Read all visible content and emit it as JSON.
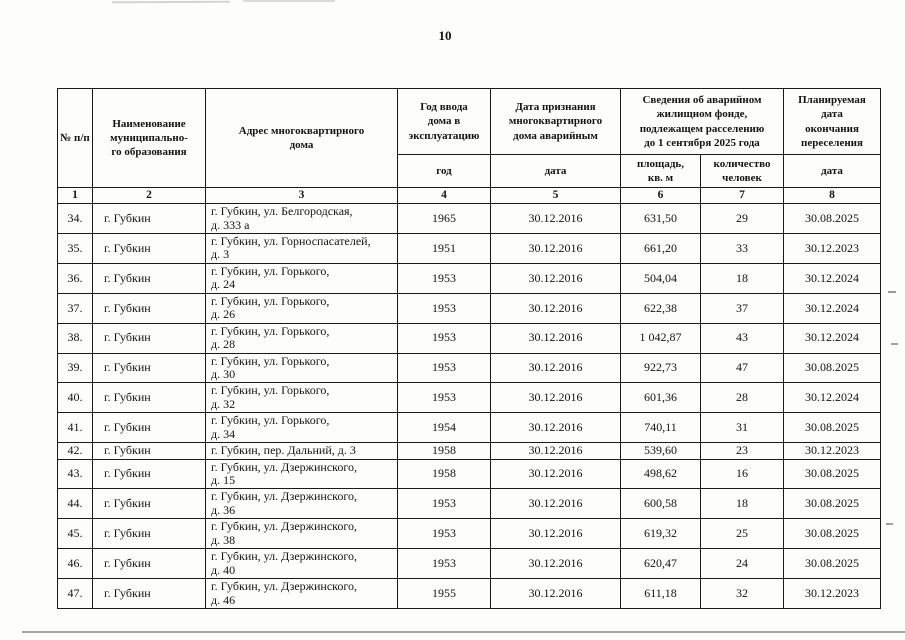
{
  "page": {
    "number": "10"
  },
  "table": {
    "headers": {
      "num": "№ п/п",
      "municipality": "Наименование\nмуниципально-\nго образования",
      "address": "Адрес многоквартирного\nдома",
      "year_group": "Год ввода\nдома в\nэксплуатацию",
      "year_sub": "год",
      "recognition_group": "Дата признания\nмногоквартирного\nдома аварийным",
      "recognition_sub": "дата",
      "fund_group": "Сведения об аварийном\nжилищном фонде,\nподлежащем расселению\nдо 1 сентября 2025 года",
      "area_sub": "площадь,\nкв. м",
      "people_sub": "количество\nчеловек",
      "completion_group": "Планируемая\nдата\nокончания\nпереселения",
      "completion_sub": "дата"
    },
    "column_numbers": [
      "1",
      "2",
      "3",
      "4",
      "5",
      "6",
      "7",
      "8"
    ],
    "rows": [
      {
        "num": "34.",
        "municipality": "г. Губкин",
        "address": "г. Губкин, ул. Белгородская,\nд. 333 а",
        "year": "1965",
        "recognition_date": "30.12.2016",
        "area": "631,50",
        "people": "29",
        "completion_date": "30.08.2025"
      },
      {
        "num": "35.",
        "municipality": "г. Губкин",
        "address": "г. Губкин, ул. Горноспасателей,\nд. 3",
        "year": "1951",
        "recognition_date": "30.12.2016",
        "area": "661,20",
        "people": "33",
        "completion_date": "30.12.2023"
      },
      {
        "num": "36.",
        "municipality": "г. Губкин",
        "address": "г. Губкин, ул. Горького,\nд. 24",
        "year": "1953",
        "recognition_date": "30.12.2016",
        "area": "504,04",
        "people": "18",
        "completion_date": "30.12.2024"
      },
      {
        "num": "37.",
        "municipality": "г. Губкин",
        "address": "г. Губкин, ул. Горького,\nд. 26",
        "year": "1953",
        "recognition_date": "30.12.2016",
        "area": "622,38",
        "people": "37",
        "completion_date": "30.12.2024"
      },
      {
        "num": "38.",
        "municipality": "г. Губкин",
        "address": "г. Губкин, ул. Горького,\nд. 28",
        "year": "1953",
        "recognition_date": "30.12.2016",
        "area": "1 042,87",
        "people": "43",
        "completion_date": "30.12.2024"
      },
      {
        "num": "39.",
        "municipality": "г. Губкин",
        "address": "г. Губкин, ул. Горького,\nд. 30",
        "year": "1953",
        "recognition_date": "30.12.2016",
        "area": "922,73",
        "people": "47",
        "completion_date": "30.08.2025"
      },
      {
        "num": "40.",
        "municipality": "г. Губкин",
        "address": "г. Губкин, ул. Горького,\nд. 32",
        "year": "1953",
        "recognition_date": "30.12.2016",
        "area": "601,36",
        "people": "28",
        "completion_date": "30.12.2024"
      },
      {
        "num": "41.",
        "municipality": "г. Губкин",
        "address": "г. Губкин, ул. Горького,\nд. 34",
        "year": "1954",
        "recognition_date": "30.12.2016",
        "area": "740,11",
        "people": "31",
        "completion_date": "30.08.2025"
      },
      {
        "num": "42.",
        "municipality": "г. Губкин",
        "address": "г. Губкин, пер. Дальний, д. 3",
        "year": "1958",
        "recognition_date": "30.12.2016",
        "area": "539,60",
        "people": "23",
        "completion_date": "30.12.2023"
      },
      {
        "num": "43.",
        "municipality": "г. Губкин",
        "address": "г. Губкин, ул. Дзержинского,\nд. 15",
        "year": "1958",
        "recognition_date": "30.12.2016",
        "area": "498,62",
        "people": "16",
        "completion_date": "30.08.2025"
      },
      {
        "num": "44.",
        "municipality": "г. Губкин",
        "address": "г. Губкин, ул. Дзержинского,\nд. 36",
        "year": "1953",
        "recognition_date": "30.12.2016",
        "area": "600,58",
        "people": "18",
        "completion_date": "30.08.2025"
      },
      {
        "num": "45.",
        "municipality": "г. Губкин",
        "address": "г. Губкин, ул. Дзержинского,\nд. 38",
        "year": "1953",
        "recognition_date": "30.12.2016",
        "area": "619,32",
        "people": "25",
        "completion_date": "30.08.2025"
      },
      {
        "num": "46.",
        "municipality": "г. Губкин",
        "address": "г. Губкин, ул. Дзержинского,\nд. 40",
        "year": "1953",
        "recognition_date": "30.12.2016",
        "area": "620,47",
        "people": "24",
        "completion_date": "30.08.2025"
      },
      {
        "num": "47.",
        "municipality": "г. Губкин",
        "address": "г. Губкин, ул. Дзержинского,\nд. 46",
        "year": "1955",
        "recognition_date": "30.12.2016",
        "area": "611,18",
        "people": "32",
        "completion_date": "30.12.2023"
      }
    ]
  }
}
